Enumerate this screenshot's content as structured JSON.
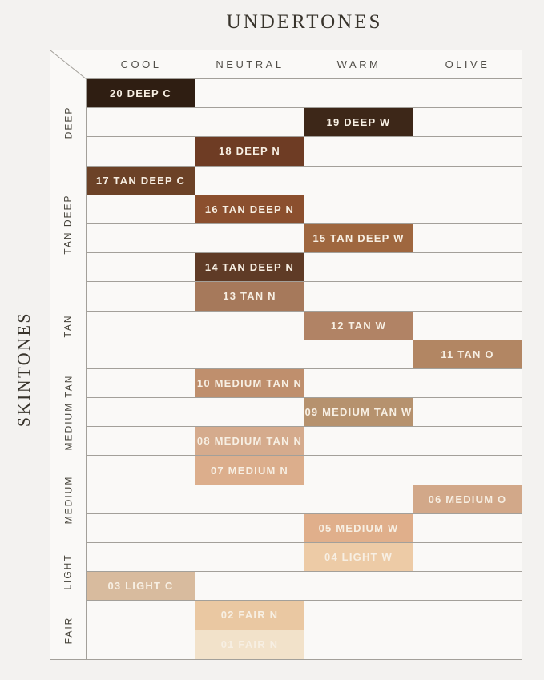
{
  "title": "UNDERTONES",
  "side_title": "SKINTONES",
  "chart_data": {
    "type": "table",
    "title": "UNDERTONES",
    "row_axis_label": "SKINTONES",
    "columns": [
      "COOL",
      "NEUTRAL",
      "WARM",
      "OLIVE"
    ],
    "row_groups": [
      {
        "label": "DEEP",
        "rows": 3
      },
      {
        "label": "TAN DEEP",
        "rows": 4
      },
      {
        "label": "TAN",
        "rows": 3
      },
      {
        "label": "MEDIUM TAN",
        "rows": 3
      },
      {
        "label": "MEDIUM",
        "rows": 3
      },
      {
        "label": "LIGHT",
        "rows": 2
      },
      {
        "label": "FAIR",
        "rows": 2
      }
    ],
    "shades": [
      {
        "label": "20 DEEP C",
        "undertone": "COOL",
        "skintone": "DEEP",
        "color": "#2F1E12"
      },
      {
        "label": "19 DEEP W",
        "undertone": "WARM",
        "skintone": "DEEP",
        "color": "#3D2718"
      },
      {
        "label": "18 DEEP N",
        "undertone": "NEUTRAL",
        "skintone": "DEEP",
        "color": "#6E3C24"
      },
      {
        "label": "17 TAN DEEP C",
        "undertone": "COOL",
        "skintone": "TAN DEEP",
        "color": "#6C4227"
      },
      {
        "label": "16 TAN DEEP N",
        "undertone": "NEUTRAL",
        "skintone": "TAN DEEP",
        "color": "#8B4F2E"
      },
      {
        "label": "15 TAN DEEP W",
        "undertone": "WARM",
        "skintone": "TAN DEEP",
        "color": "#9F673F"
      },
      {
        "label": "14 TAN DEEP N",
        "undertone": "NEUTRAL",
        "skintone": "TAN DEEP",
        "color": "#5F3B26"
      },
      {
        "label": "13 TAN N",
        "undertone": "NEUTRAL",
        "skintone": "TAN",
        "color": "#A6795B"
      },
      {
        "label": "12 TAN W",
        "undertone": "WARM",
        "skintone": "TAN",
        "color": "#B18365"
      },
      {
        "label": "11 TAN O",
        "undertone": "OLIVE",
        "skintone": "TAN",
        "color": "#B28663"
      },
      {
        "label": "10 MEDIUM TAN N",
        "undertone": "NEUTRAL",
        "skintone": "MEDIUM TAN",
        "color": "#BF8F6D"
      },
      {
        "label": "09 MEDIUM TAN W",
        "undertone": "WARM",
        "skintone": "MEDIUM TAN",
        "color": "#B6926E"
      },
      {
        "label": "08 MEDIUM TAN N",
        "undertone": "NEUTRAL",
        "skintone": "MEDIUM TAN",
        "color": "#D5AB8D"
      },
      {
        "label": "07 MEDIUM N",
        "undertone": "NEUTRAL",
        "skintone": "MEDIUM",
        "color": "#DCAE8C"
      },
      {
        "label": "06 MEDIUM O",
        "undertone": "OLIVE",
        "skintone": "MEDIUM",
        "color": "#D2A889"
      },
      {
        "label": "05 MEDIUM W",
        "undertone": "WARM",
        "skintone": "MEDIUM",
        "color": "#E0AF8B"
      },
      {
        "label": "04 LIGHT W",
        "undertone": "WARM",
        "skintone": "LIGHT",
        "color": "#EDCBA6"
      },
      {
        "label": "03 LIGHT C",
        "undertone": "COOL",
        "skintone": "LIGHT",
        "color": "#D8BB9E"
      },
      {
        "label": "02 FAIR N",
        "undertone": "NEUTRAL",
        "skintone": "FAIR",
        "color": "#EAC8A2"
      },
      {
        "label": "01 FAIR N",
        "undertone": "NEUTRAL",
        "skintone": "FAIR",
        "color": "#F2E2CA"
      }
    ]
  },
  "style": {
    "page_bg": "#F3F2F0",
    "cell_bg": "#FAF9F7",
    "grid_line": "#A3A09A",
    "swatch_text": "#F7EFE3",
    "header_text": "#514E48",
    "group_text": "#454239",
    "title_text": "#38342C"
  }
}
